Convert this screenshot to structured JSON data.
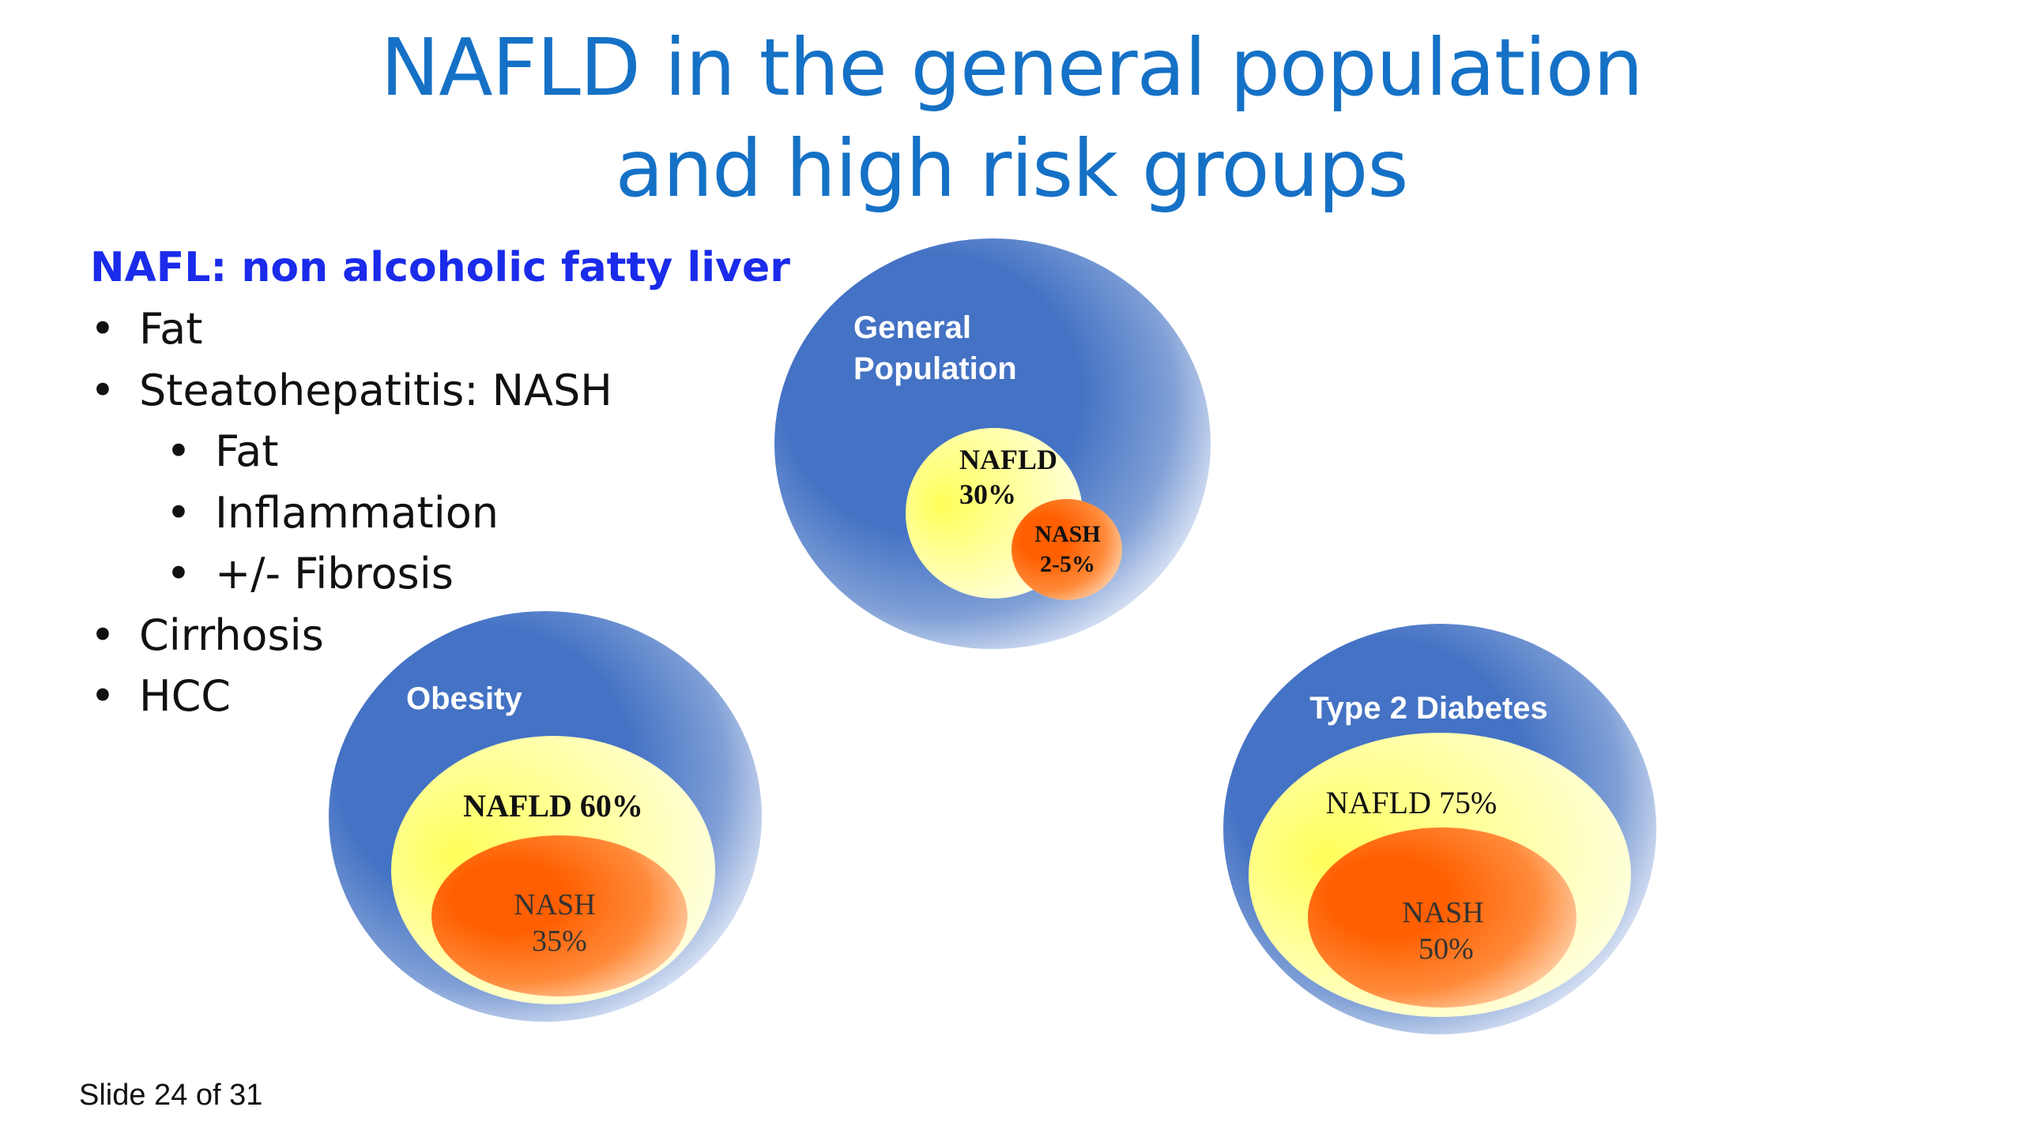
{
  "title": {
    "line1": "NAFLD in the general population",
    "line2": "and high risk groups"
  },
  "left": {
    "subheading": "NAFL: non alcoholic fatty liver",
    "bullets": [
      {
        "text": "Fat",
        "level": 1
      },
      {
        "text": "Steatohepatitis: NASH",
        "level": 1
      },
      {
        "text": "Fat",
        "level": 2
      },
      {
        "text": "Inflammation",
        "level": 2
      },
      {
        "text": "+/- Fibrosis",
        "level": 2
      },
      {
        "text": "Cirrhosis",
        "level": 1
      },
      {
        "text": "HCC",
        "level": 1
      }
    ]
  },
  "groups": {
    "general": {
      "label1": "General",
      "label2": "Population",
      "nafld1": "NAFLD",
      "nafld2": "30%",
      "nash1": "NASH",
      "nash2": "2-5%"
    },
    "obesity": {
      "label": "Obesity",
      "nafld": "NAFLD 60%",
      "nash1": "NASH",
      "nash2": "35%"
    },
    "diabetes": {
      "label": "Type 2 Diabetes",
      "nafld": "NAFLD 75%",
      "nash1": "NASH",
      "nash2": "50%"
    }
  },
  "colors": {
    "title": "#1571c6",
    "outer_blue": "#4472c4",
    "nafld_yellow": "#ffff66",
    "nash_orange": "#ff5f00"
  },
  "footer": "Slide 24 of 31"
}
